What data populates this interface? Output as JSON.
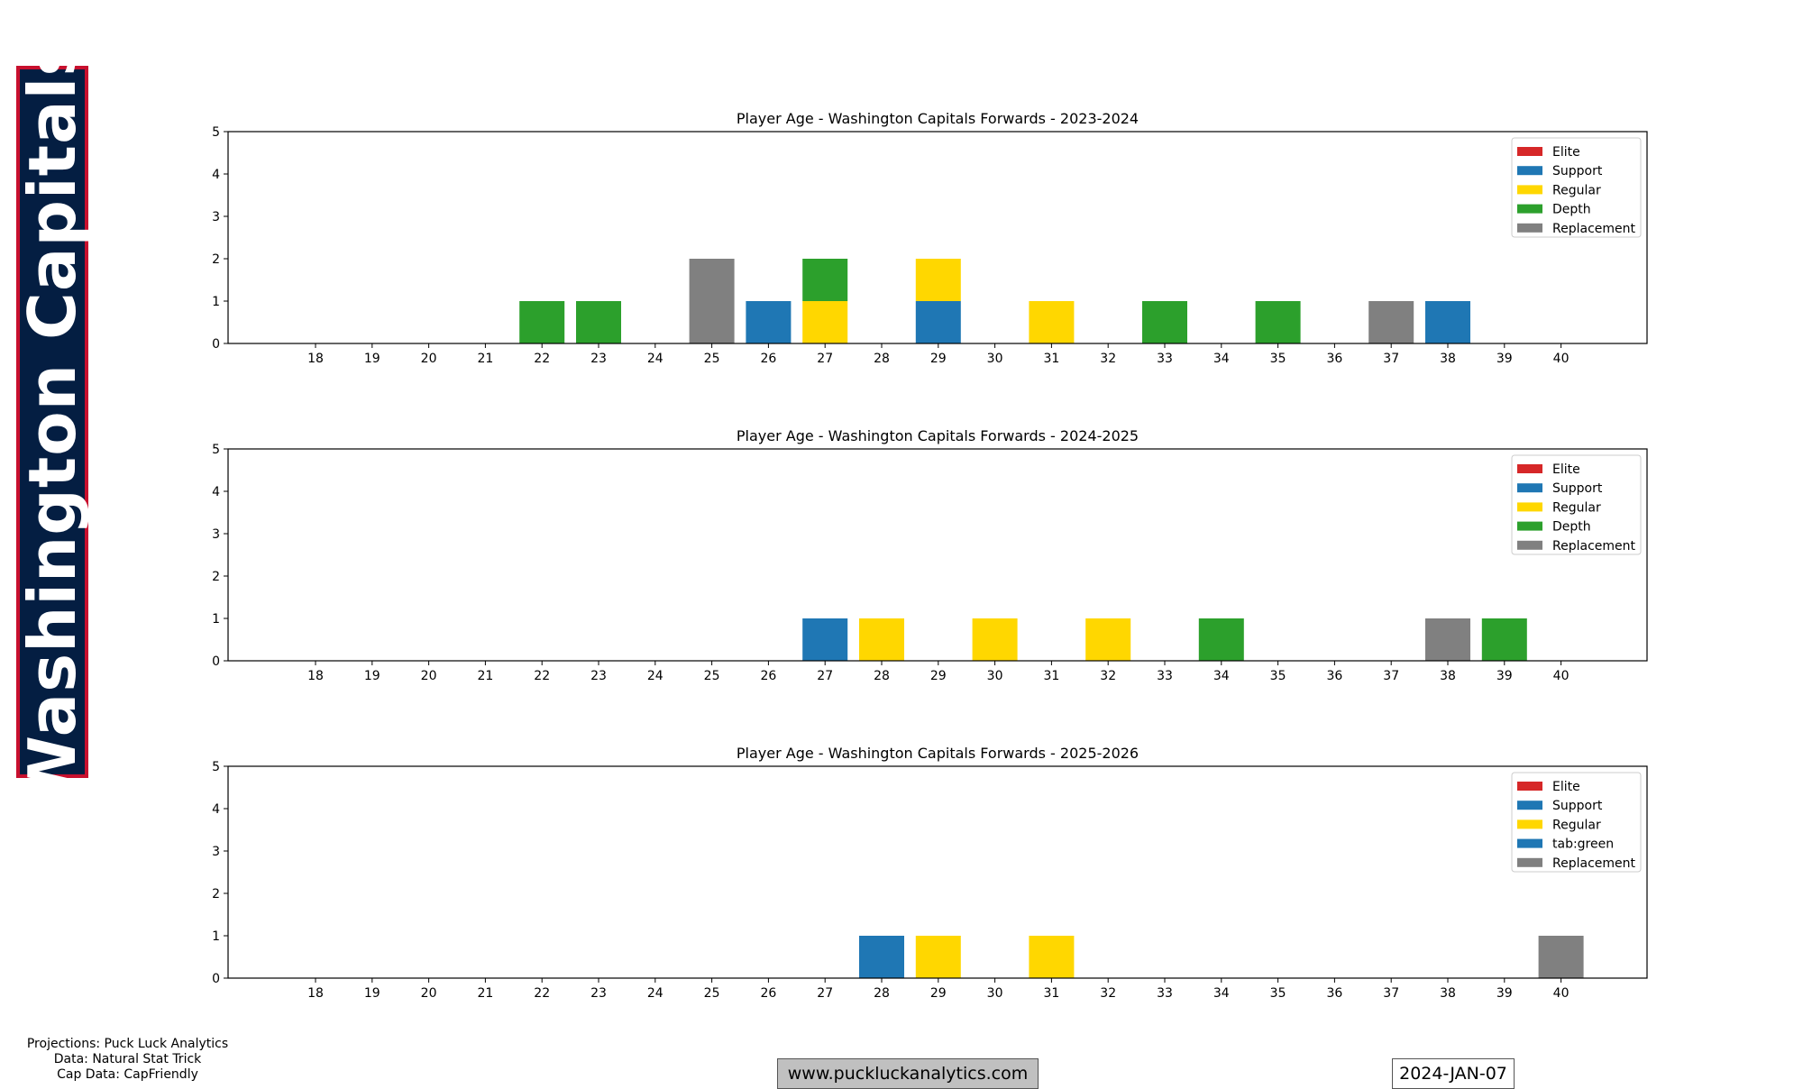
{
  "team": {
    "name": "Washington Capitals",
    "banner_bg": "#041E42",
    "banner_border": "#C8102E"
  },
  "credits": [
    "Projections: Puck Luck Analytics",
    "Data: Natural Stat Trick",
    "Cap Data: CapFriendly"
  ],
  "website": "www.puckluckanalytics.com",
  "date": "2024-JAN-07",
  "colors": {
    "Elite": "#d62728",
    "Support": "#1f77b4",
    "Regular": "#FFD700",
    "Depth": "#2ca02c",
    "Replacement": "#808080"
  },
  "chart_data": [
    {
      "type": "bar",
      "stacked": true,
      "title": "Player Age - Washington Capitals Forwards - 2023-2024",
      "categories": [
        18,
        19,
        20,
        21,
        22,
        23,
        24,
        25,
        26,
        27,
        28,
        29,
        30,
        31,
        32,
        33,
        34,
        35,
        36,
        37,
        38,
        39,
        40
      ],
      "ylim": [
        0,
        5
      ],
      "yticks": [
        0,
        1,
        2,
        3,
        4,
        5
      ],
      "legend": [
        "Elite",
        "Support",
        "Regular",
        "Depth",
        "Replacement"
      ],
      "legend_position": "top-right",
      "series": [
        {
          "name": "Elite",
          "values": [
            0,
            0,
            0,
            0,
            0,
            0,
            0,
            0,
            0,
            0,
            0,
            0,
            0,
            0,
            0,
            0,
            0,
            0,
            0,
            0,
            0,
            0,
            0
          ]
        },
        {
          "name": "Support",
          "values": [
            0,
            0,
            0,
            0,
            0,
            0,
            0,
            0,
            1,
            0,
            0,
            1,
            0,
            0,
            0,
            0,
            0,
            0,
            0,
            0,
            1,
            0,
            0
          ]
        },
        {
          "name": "Regular",
          "values": [
            0,
            0,
            0,
            0,
            0,
            0,
            0,
            0,
            0,
            1,
            0,
            1,
            0,
            1,
            0,
            0,
            0,
            0,
            0,
            0,
            0,
            0,
            0
          ]
        },
        {
          "name": "Depth",
          "values": [
            0,
            0,
            0,
            0,
            1,
            1,
            0,
            0,
            0,
            1,
            0,
            0,
            0,
            0,
            0,
            1,
            0,
            1,
            0,
            0,
            0,
            0,
            0
          ]
        },
        {
          "name": "Replacement",
          "values": [
            0,
            0,
            0,
            0,
            0,
            0,
            0,
            2,
            0,
            0,
            0,
            0,
            0,
            0,
            0,
            0,
            0,
            0,
            0,
            1,
            0,
            0,
            0
          ]
        }
      ]
    },
    {
      "type": "bar",
      "stacked": true,
      "title": "Player Age - Washington Capitals Forwards - 2024-2025",
      "categories": [
        18,
        19,
        20,
        21,
        22,
        23,
        24,
        25,
        26,
        27,
        28,
        29,
        30,
        31,
        32,
        33,
        34,
        35,
        36,
        37,
        38,
        39,
        40
      ],
      "ylim": [
        0,
        5
      ],
      "yticks": [
        0,
        1,
        2,
        3,
        4,
        5
      ],
      "legend": [
        "Elite",
        "Support",
        "Regular",
        "Depth",
        "Replacement"
      ],
      "legend_position": "top-right",
      "series": [
        {
          "name": "Elite",
          "values": [
            0,
            0,
            0,
            0,
            0,
            0,
            0,
            0,
            0,
            0,
            0,
            0,
            0,
            0,
            0,
            0,
            0,
            0,
            0,
            0,
            0,
            0,
            0
          ]
        },
        {
          "name": "Support",
          "values": [
            0,
            0,
            0,
            0,
            0,
            0,
            0,
            0,
            0,
            1,
            0,
            0,
            0,
            0,
            0,
            0,
            0,
            0,
            0,
            0,
            0,
            0,
            0
          ]
        },
        {
          "name": "Regular",
          "values": [
            0,
            0,
            0,
            0,
            0,
            0,
            0,
            0,
            0,
            0,
            1,
            0,
            1,
            0,
            1,
            0,
            0,
            0,
            0,
            0,
            0,
            0,
            0
          ]
        },
        {
          "name": "Depth",
          "values": [
            0,
            0,
            0,
            0,
            0,
            0,
            0,
            0,
            0,
            0,
            0,
            0,
            0,
            0,
            0,
            0,
            1,
            0,
            0,
            0,
            0,
            1,
            0
          ]
        },
        {
          "name": "Replacement",
          "values": [
            0,
            0,
            0,
            0,
            0,
            0,
            0,
            0,
            0,
            0,
            0,
            0,
            0,
            0,
            0,
            0,
            0,
            0,
            0,
            0,
            1,
            0,
            0
          ]
        }
      ]
    },
    {
      "type": "bar",
      "stacked": true,
      "title": "Player Age - Washington Capitals Forwards - 2025-2026",
      "categories": [
        18,
        19,
        20,
        21,
        22,
        23,
        24,
        25,
        26,
        27,
        28,
        29,
        30,
        31,
        32,
        33,
        34,
        35,
        36,
        37,
        38,
        39,
        40
      ],
      "ylim": [
        0,
        5
      ],
      "yticks": [
        0,
        1,
        2,
        3,
        4,
        5
      ],
      "legend": [
        "Elite",
        "Support",
        "Regular",
        "tab:green",
        "Replacement"
      ],
      "legend_position": "top-right",
      "series": [
        {
          "name": "Elite",
          "values": [
            0,
            0,
            0,
            0,
            0,
            0,
            0,
            0,
            0,
            0,
            0,
            0,
            0,
            0,
            0,
            0,
            0,
            0,
            0,
            0,
            0,
            0,
            0
          ]
        },
        {
          "name": "Support",
          "values": [
            0,
            0,
            0,
            0,
            0,
            0,
            0,
            0,
            0,
            0,
            1,
            0,
            0,
            0,
            0,
            0,
            0,
            0,
            0,
            0,
            0,
            0,
            0
          ]
        },
        {
          "name": "Regular",
          "values": [
            0,
            0,
            0,
            0,
            0,
            0,
            0,
            0,
            0,
            0,
            0,
            1,
            0,
            1,
            0,
            0,
            0,
            0,
            0,
            0,
            0,
            0,
            0
          ]
        },
        {
          "name": "tab:green",
          "values": [
            0,
            0,
            0,
            0,
            0,
            0,
            0,
            0,
            0,
            0,
            0,
            0,
            0,
            0,
            0,
            0,
            0,
            0,
            0,
            0,
            0,
            0,
            0
          ]
        },
        {
          "name": "Replacement",
          "values": [
            0,
            0,
            0,
            0,
            0,
            0,
            0,
            0,
            0,
            0,
            0,
            0,
            0,
            0,
            0,
            0,
            0,
            0,
            0,
            0,
            0,
            0,
            1
          ]
        }
      ]
    }
  ]
}
